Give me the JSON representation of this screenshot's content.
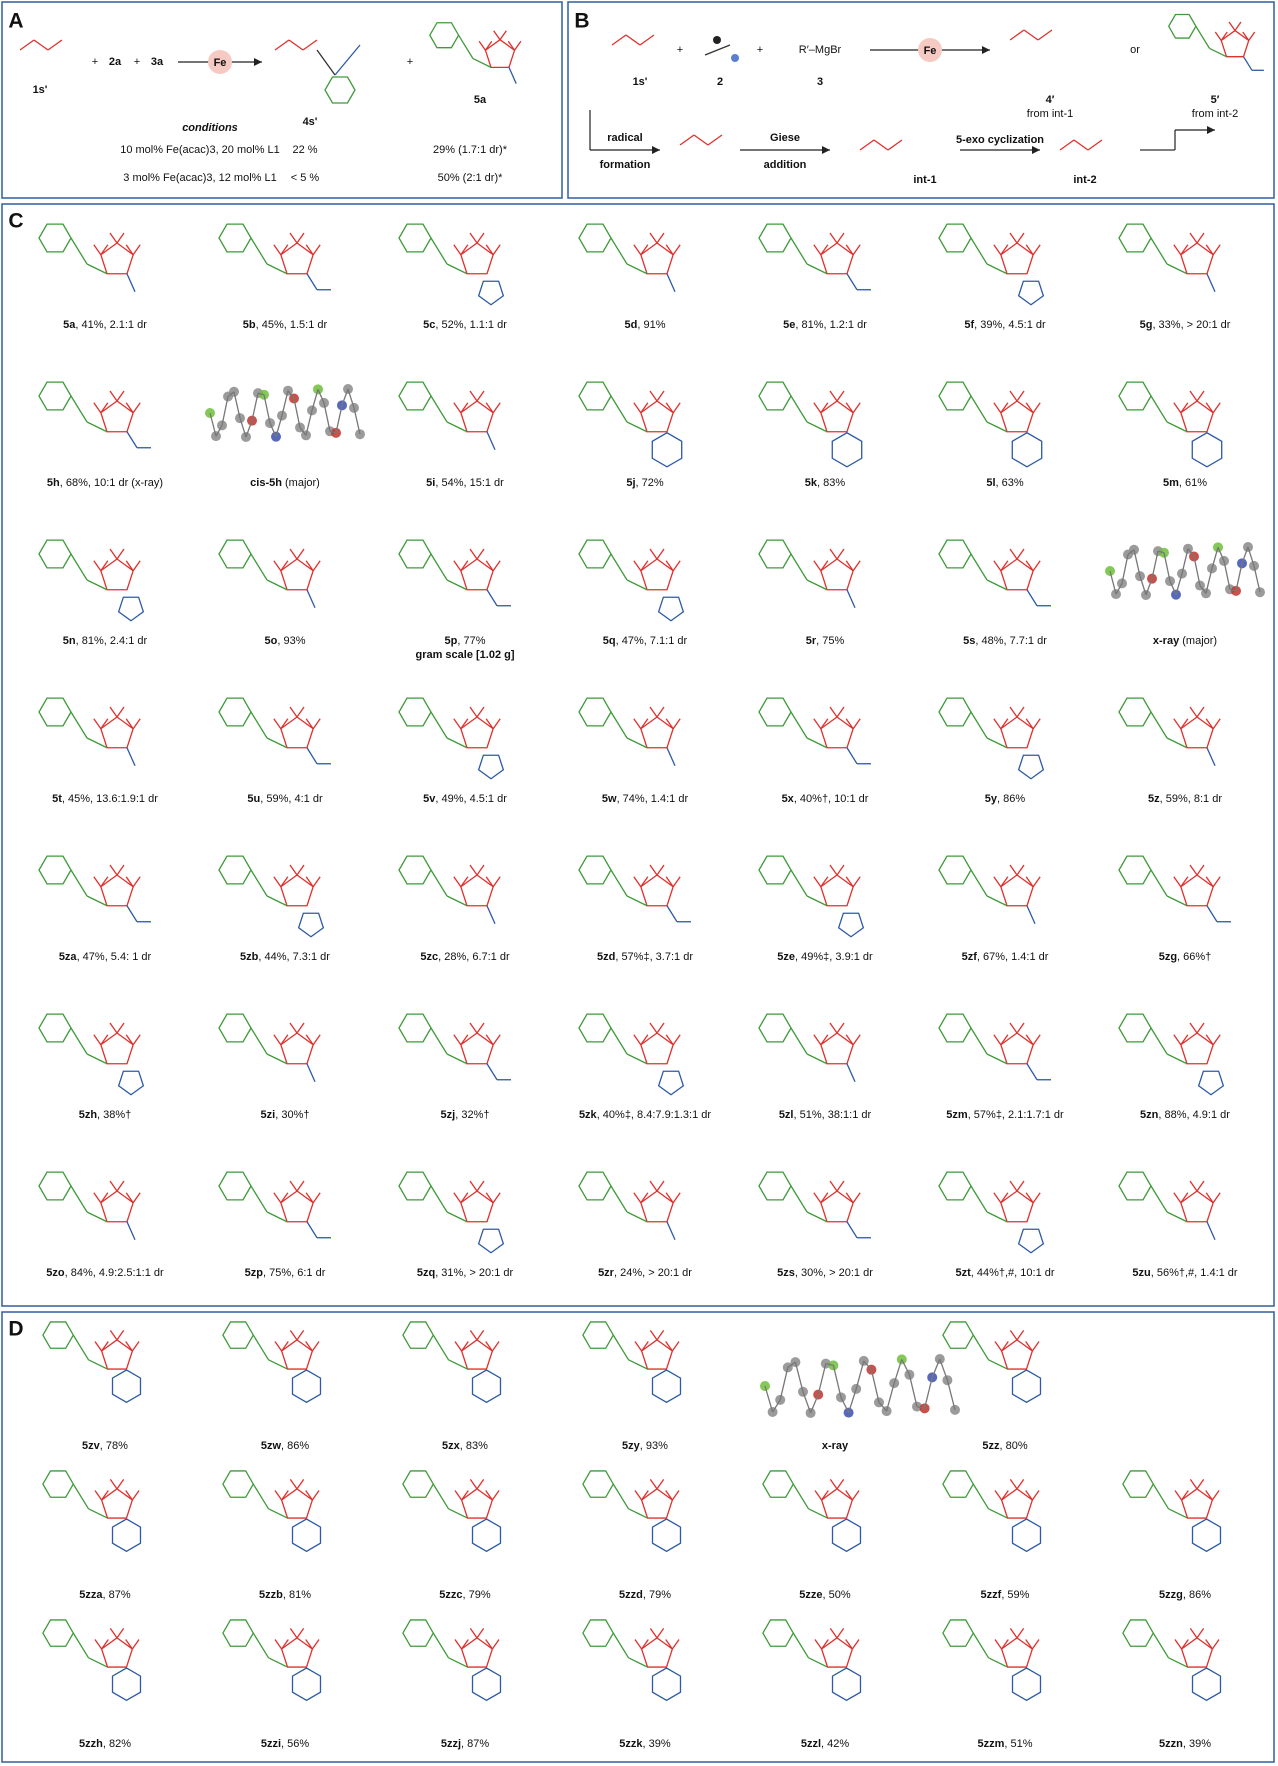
{
  "panel_a": {
    "letter": "A",
    "reactant": "1s'",
    "plus_signs": [
      "+",
      "+",
      "+"
    ],
    "reagent_2": "2a",
    "reagent_3": "3a",
    "catalyst": "Fe",
    "product_4": "4s'",
    "product_5": "5a",
    "conditions_title": "conditions",
    "rows": [
      [
        "10 mol% Fe(acac)3, 20 mol% L1",
        "22 %",
        "29% (1.7:1 dr)*"
      ],
      [
        "3 mol% Fe(acac)3, 12 mol% L1",
        "< 5 %",
        "50% (2:1 dr)*"
      ]
    ]
  },
  "panel_b": {
    "letter": "B",
    "reactant": "1s'",
    "plus_signs": [
      "+",
      "+"
    ],
    "reagent_2": "2",
    "grignard": "R′–MgBr",
    "reagent_3": "3",
    "catalyst": "Fe",
    "product_4": "4′",
    "product_4_source": "from int-1",
    "or": "or",
    "product_5": "5′",
    "product_5_source": "from int-2",
    "step_1": [
      "radical",
      "formation"
    ],
    "step_2": [
      "Giese",
      "addition"
    ],
    "intermediate_1": "int-1",
    "step_3": "5-exo cyclization",
    "intermediate_2": "int-2"
  },
  "panel_c": {
    "letter": "C",
    "rows": [
      [
        {
          "label": "5a",
          "text": ", 41%, 2.1:1 dr"
        },
        {
          "label": "5b",
          "text": ", 45%, 1.5:1 dr"
        },
        {
          "label": "5c",
          "text": ", 52%, 1.1:1 dr"
        },
        {
          "label": "5d",
          "text": ", 91%"
        },
        {
          "label": "5e",
          "text": ", 81%, 1.2:1 dr"
        },
        {
          "label": "5f",
          "text": ", 39%, 4.5:1 dr"
        },
        {
          "label": "5g",
          "text": ", 33%, > 20:1 dr"
        }
      ],
      [
        {
          "label": "5h",
          "text": ", 68%, 10:1 dr (x-ray)"
        },
        {
          "label": "cis-5h",
          "text": " (major)"
        },
        {
          "label": "5i",
          "text": ", 54%, 15:1 dr"
        },
        {
          "label": "5j",
          "text": ", 72%"
        },
        {
          "label": "5k",
          "text": ", 83%"
        },
        {
          "label": "5l",
          "text": ", 63%"
        },
        {
          "label": "5m",
          "text": ", 61%"
        }
      ],
      [
        {
          "label": "5n",
          "text": ", 81%, 2.4:1 dr"
        },
        {
          "label": "5o",
          "text": ", 93%"
        },
        {
          "label": "5p",
          "text": ", 77%",
          "note": "gram scale [1.02 g]"
        },
        {
          "label": "5q",
          "text": ", 47%, 7.1:1 dr"
        },
        {
          "label": "5r",
          "text": ", 75%"
        },
        {
          "label": "5s",
          "text": ", 48%, 7.7:1 dr"
        },
        {
          "label": "x-ray",
          "text": " (major)"
        }
      ],
      [
        {
          "label": "5t",
          "text": ", 45%, 13.6:1.9:1 dr"
        },
        {
          "label": "5u",
          "text": ", 59%, 4:1 dr"
        },
        {
          "label": "5v",
          "text": ", 49%, 4.5:1 dr"
        },
        {
          "label": "5w",
          "text": ", 74%, 1.4:1 dr"
        },
        {
          "label": "5x",
          "text": ", 40%†, 10:1 dr"
        },
        {
          "label": "5y",
          "text": ", 86%"
        },
        {
          "label": "5z",
          "text": ", 59%, 8:1 dr"
        }
      ],
      [
        {
          "label": "5za",
          "text": ", 47%, 5.4: 1 dr"
        },
        {
          "label": "5zb",
          "text": ", 44%, 7.3:1 dr"
        },
        {
          "label": "5zc",
          "text": ", 28%, 6.7:1 dr"
        },
        {
          "label": "5zd",
          "text": ", 57%‡, 3.7:1 dr"
        },
        {
          "label": "5ze",
          "text": ", 49%‡, 3.9:1 dr"
        },
        {
          "label": "5zf",
          "text": ", 67%, 1.4:1 dr"
        },
        {
          "label": "5zg",
          "text": ", 66%†"
        }
      ],
      [
        {
          "label": "5zh",
          "text": ", 38%†"
        },
        {
          "label": "5zi",
          "text": ", 30%†"
        },
        {
          "label": "5zj",
          "text": ", 32%†"
        },
        {
          "label": "5zk",
          "text": ", 40%‡, 8.4:7.9:1.3:1 dr"
        },
        {
          "label": "5zl",
          "text": ", 51%, 38:1:1 dr"
        },
        {
          "label": "5zm",
          "text": ", 57%‡, 2.1:1.7:1 dr"
        },
        {
          "label": "5zn",
          "text": ", 88%, 4.9:1 dr"
        }
      ],
      [
        {
          "label": "5zo",
          "text": ", 84%, 4.9:2.5:1:1 dr"
        },
        {
          "label": "5zp",
          "text": ", 75%, 6:1 dr"
        },
        {
          "label": "5zq",
          "text": ", 31%, > 20:1 dr"
        },
        {
          "label": "5zr",
          "text": ", 24%, > 20:1 dr"
        },
        {
          "label": "5zs",
          "text": ", 30%, > 20:1 dr"
        },
        {
          "label": "5zt",
          "text": ", 44%†,#, 10:1 dr"
        },
        {
          "label": "5zu",
          "text": ", 56%†,#, 1.4:1 dr"
        }
      ]
    ]
  },
  "panel_d": {
    "letter": "D",
    "rows": [
      [
        {
          "label": "5zv",
          "text": ", 78%"
        },
        {
          "label": "5zw",
          "text": ", 86%"
        },
        {
          "label": "5zx",
          "text": ", 83%"
        },
        {
          "label": "5zy",
          "text": ", 93%"
        },
        {
          "label": "x-ray",
          "text": ""
        },
        {
          "label": "5zz",
          "text": ", 80%"
        }
      ],
      [
        {
          "label": "5zza",
          "text": ", 87%"
        },
        {
          "label": "5zzb",
          "text": ", 81%"
        },
        {
          "label": "5zzc",
          "text": ", 79%"
        },
        {
          "label": "5zzd",
          "text": ", 79%"
        },
        {
          "label": "5zze",
          "text": ", 50%"
        },
        {
          "label": "5zzf",
          "text": ", 59%"
        },
        {
          "label": "5zzg",
          "text": ", 86%"
        }
      ],
      [
        {
          "label": "5zzh",
          "text": ", 82%"
        },
        {
          "label": "5zzi",
          "text": ", 56%"
        },
        {
          "label": "5zzj",
          "text": ", 87%"
        },
        {
          "label": "5zzk",
          "text": ", 39%"
        },
        {
          "label": "5zzl",
          "text": ", 42%"
        },
        {
          "label": "5zzm",
          "text": ", 51%"
        },
        {
          "label": "5zzn",
          "text": ", 39%"
        }
      ]
    ]
  }
}
